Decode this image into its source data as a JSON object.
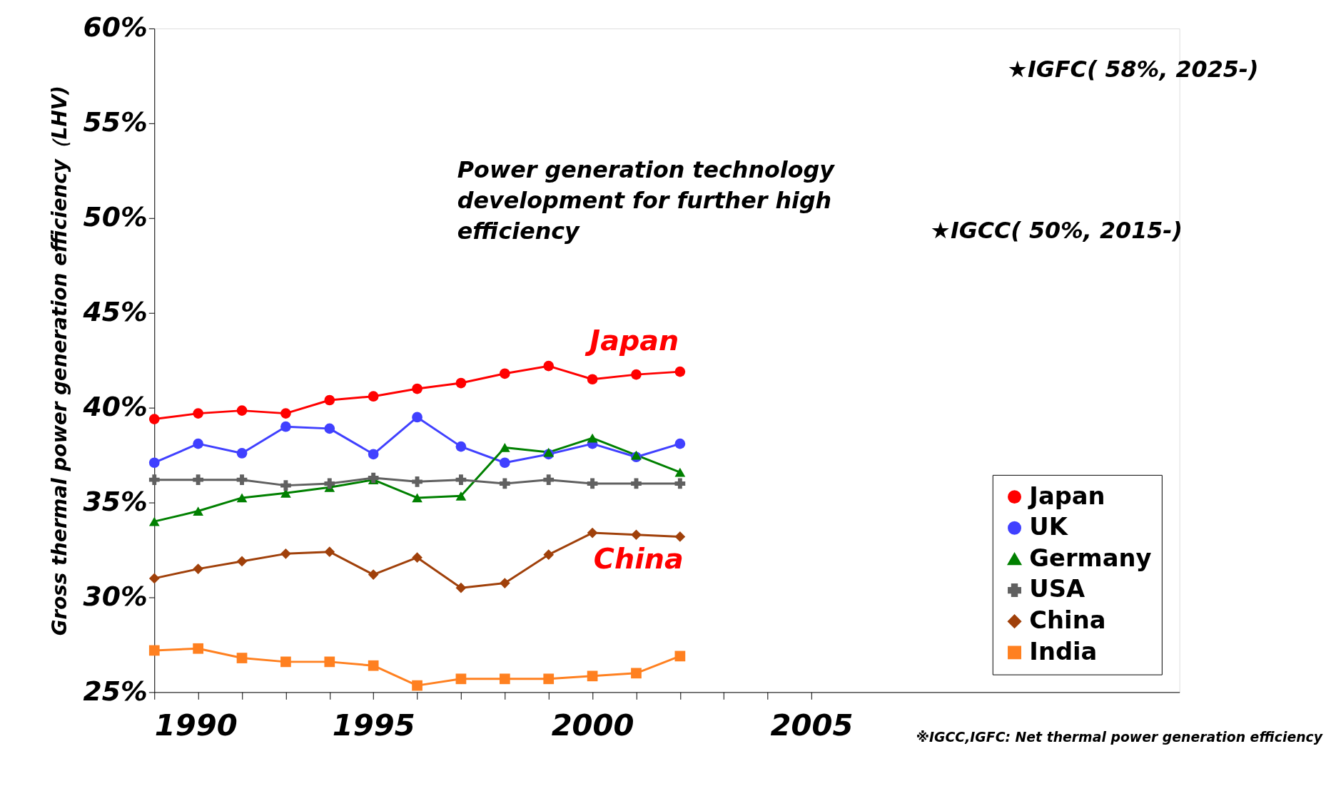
{
  "chart_data": {
    "type": "line",
    "ylabel": "Gross thermal power generation efficiency（LHV)",
    "x": [
      1990,
      1991,
      1992,
      1993,
      1994,
      1995,
      1996,
      1997,
      1998,
      1999,
      2000,
      2001,
      2002
    ],
    "xlim": [
      1990,
      2013.4
    ],
    "xticks": [
      1990,
      {
        "value": 1991,
        "label": null
      },
      {
        "value": 1992,
        "label": null
      },
      {
        "value": 1993,
        "label": null
      },
      {
        "value": 1994,
        "label": null
      },
      1995,
      {
        "value": 1996,
        "label": null
      },
      {
        "value": 1997,
        "label": null
      },
      {
        "value": 1998,
        "label": null
      },
      {
        "value": 1999,
        "label": null
      },
      2000,
      {
        "value": 2001,
        "label": null
      },
      {
        "value": 2002,
        "label": null
      },
      {
        "value": 2003,
        "label": null
      },
      {
        "value": 2004,
        "label": null
      },
      2005
    ],
    "ylim": [
      25,
      60
    ],
    "yticks": [
      {
        "value": 25,
        "label": "25%"
      },
      {
        "value": 30,
        "label": "30%"
      },
      {
        "value": 35,
        "label": "35%"
      },
      {
        "value": 40,
        "label": "40%"
      },
      {
        "value": 45,
        "label": "45%"
      },
      {
        "value": 50,
        "label": "50%"
      },
      {
        "value": 55,
        "label": "55%"
      },
      {
        "value": 60,
        "label": "60%"
      }
    ],
    "series": [
      {
        "name": "Japan",
        "color": "#ff0000",
        "marker": "circle",
        "values": [
          39.4,
          39.7,
          39.85,
          39.7,
          40.4,
          40.6,
          41.0,
          41.3,
          41.8,
          42.2,
          41.5,
          41.75,
          41.9
        ]
      },
      {
        "name": "UK",
        "color": "#4040ff",
        "marker": "circle",
        "values": [
          37.1,
          38.1,
          37.6,
          39.0,
          38.9,
          37.55,
          39.5,
          37.95,
          37.1,
          37.55,
          38.1,
          37.4,
          38.1
        ]
      },
      {
        "name": "Germany",
        "color": "#008000",
        "marker": "triangle",
        "values": [
          34.0,
          34.55,
          35.25,
          35.5,
          35.8,
          36.2,
          35.25,
          35.35,
          37.9,
          37.65,
          38.4,
          37.5,
          36.6
        ]
      },
      {
        "name": "USA",
        "color": "#606060",
        "marker": "cross",
        "values": [
          36.2,
          36.2,
          36.2,
          35.9,
          36.0,
          36.3,
          36.1,
          36.2,
          36.0,
          36.2,
          36.0,
          36.0,
          36.0
        ]
      },
      {
        "name": "China",
        "color": "#a0400a",
        "marker": "diamond",
        "values": [
          31.0,
          31.5,
          31.9,
          32.3,
          32.4,
          31.2,
          32.1,
          30.5,
          30.75,
          32.25,
          33.4,
          33.3,
          33.2
        ]
      },
      {
        "name": "India",
        "color": "#ff8020",
        "marker": "square",
        "values": [
          27.2,
          27.3,
          26.8,
          26.6,
          26.6,
          26.4,
          25.35,
          25.7,
          25.7,
          25.7,
          25.85,
          26.0,
          26.9
        ]
      }
    ],
    "line_style": "solid",
    "legend": "bottom right",
    "grid": false,
    "annotations": [
      "Japan",
      "China",
      "Power generation technology development for further high efficiency",
      "★IGFC( 58%, 2025-)",
      "★IGCC( 50%, 2015-)",
      "※IGCC,IGFC: Net thermal power generation efficiency"
    ]
  }
}
